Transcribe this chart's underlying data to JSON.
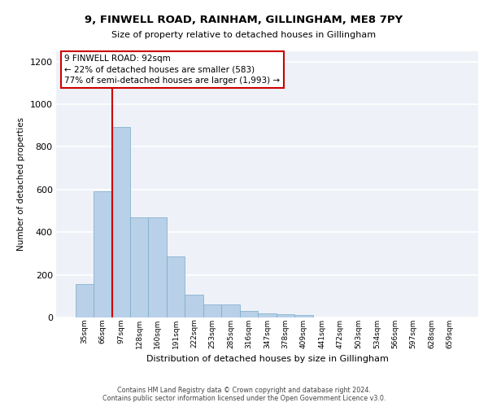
{
  "title": "9, FINWELL ROAD, RAINHAM, GILLINGHAM, ME8 7PY",
  "subtitle": "Size of property relative to detached houses in Gillingham",
  "xlabel": "Distribution of detached houses by size in Gillingham",
  "ylabel": "Number of detached properties",
  "categories": [
    "35sqm",
    "66sqm",
    "97sqm",
    "128sqm",
    "160sqm",
    "191sqm",
    "222sqm",
    "253sqm",
    "285sqm",
    "316sqm",
    "347sqm",
    "378sqm",
    "409sqm",
    "441sqm",
    "472sqm",
    "503sqm",
    "534sqm",
    "566sqm",
    "597sqm",
    "628sqm",
    "659sqm"
  ],
  "values": [
    155,
    590,
    893,
    470,
    470,
    285,
    105,
    62,
    62,
    30,
    20,
    15,
    10,
    0,
    0,
    0,
    0,
    0,
    0,
    0,
    0
  ],
  "bar_color": "#b8d0e8",
  "bar_edge_color": "#7aaac8",
  "red_line_color": "#cc0000",
  "annotation_line1": "9 FINWELL ROAD: 92sqm",
  "annotation_line2": "← 22% of detached houses are smaller (583)",
  "annotation_line3": "77% of semi-detached houses are larger (1,993) →",
  "annotation_box_color": "#ffffff",
  "annotation_box_edge": "#cc0000",
  "ylim": [
    0,
    1250
  ],
  "yticks": [
    0,
    200,
    400,
    600,
    800,
    1000,
    1200
  ],
  "background_color": "#eef2f8",
  "grid_color": "#ffffff",
  "footer_line1": "Contains HM Land Registry data © Crown copyright and database right 2024.",
  "footer_line2": "Contains public sector information licensed under the Open Government Licence v3.0."
}
